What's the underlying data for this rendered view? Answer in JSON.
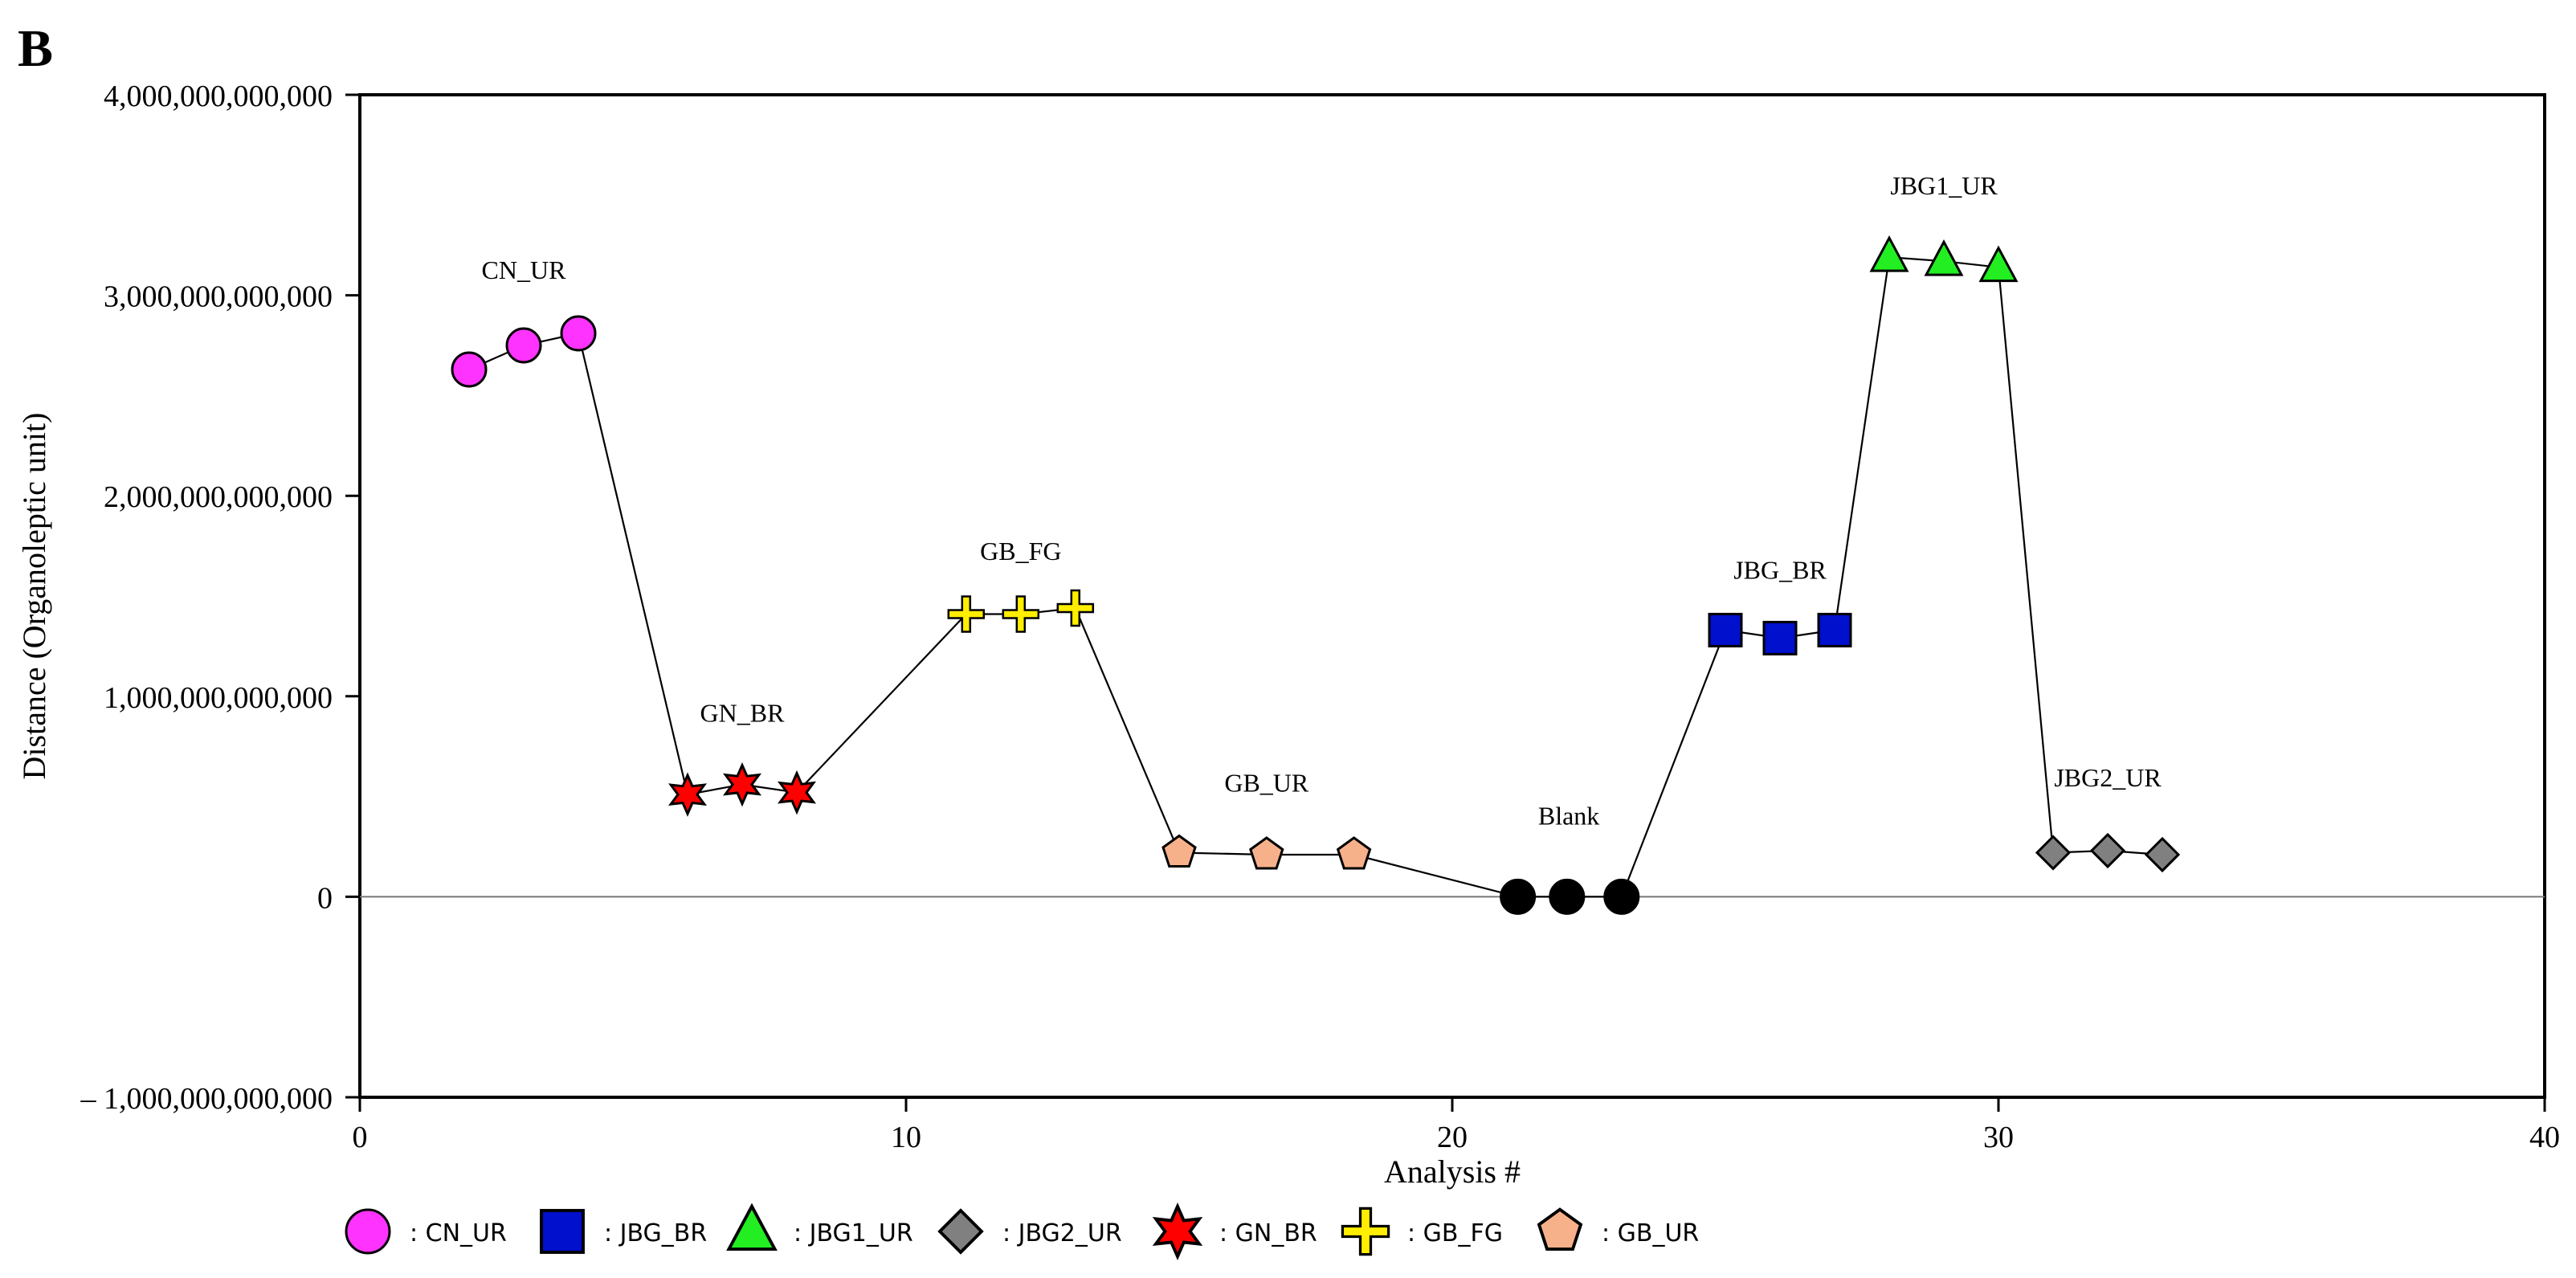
{
  "panel_label": "B",
  "chart_data": {
    "type": "scatter",
    "xlabel": "Analysis #",
    "ylabel": "Distance (Organoleptic unit)",
    "xlim": [
      0,
      40
    ],
    "ylim": [
      -1000000000000,
      4000000000000
    ],
    "x_ticks": [
      0,
      10,
      20,
      30,
      40
    ],
    "x_tick_labels": [
      "0",
      "10",
      "20",
      "30",
      "40"
    ],
    "y_ticks": [
      -1000000000000,
      0,
      1000000000000,
      2000000000000,
      3000000000000,
      4000000000000
    ],
    "y_tick_labels": [
      "– 1,000,000,000,000",
      "0",
      "1,000,000,000,000",
      "2,000,000,000,000",
      "3,000,000,000,000",
      "4,000,000,000,000"
    ],
    "zero_line": true,
    "connected": true,
    "legend_position": "bottom",
    "series": [
      {
        "name": "CN_UR",
        "legend_label": ": CN_UR",
        "marker": "circle",
        "color": "#ff33ff",
        "x": [
          2,
          3,
          4
        ],
        "y": [
          2630000000000,
          2750000000000,
          2810000000000
        ]
      },
      {
        "name": "GN_BR",
        "legend_label": ": GN_BR",
        "marker": "star6",
        "color": "#ff0000",
        "x": [
          6,
          7,
          8
        ],
        "y": [
          510000000000,
          560000000000,
          520000000000
        ]
      },
      {
        "name": "GB_FG",
        "legend_label": ": GB_FG",
        "marker": "cross",
        "color": "#ffee00",
        "x": [
          11.1,
          12.1,
          13.1
        ],
        "y": [
          1410000000000,
          1410000000000,
          1440000000000
        ]
      },
      {
        "name": "GB_UR",
        "legend_label": ": GB_UR",
        "marker": "pentagon",
        "color": "#f7b18a",
        "x": [
          15,
          16.6,
          18.2
        ],
        "y": [
          220000000000,
          210000000000,
          210000000000
        ]
      },
      {
        "name": "Blank",
        "legend_label": "",
        "marker": "circle",
        "color": "#000000",
        "x": [
          21.2,
          22.1,
          23.1
        ],
        "y": [
          0,
          0,
          0
        ]
      },
      {
        "name": "JBG_BR",
        "legend_label": ": JBG_BR",
        "marker": "square",
        "color": "#0010cc",
        "x": [
          25,
          26,
          27
        ],
        "y": [
          1330000000000,
          1290000000000,
          1330000000000
        ]
      },
      {
        "name": "JBG1_UR",
        "legend_label": ": JBG1_UR",
        "marker": "triangle",
        "color": "#22ee22",
        "x": [
          28,
          29,
          30
        ],
        "y": [
          3190000000000,
          3170000000000,
          3140000000000
        ]
      },
      {
        "name": "JBG2_UR",
        "legend_label": ": JBG2_UR",
        "marker": "diamond",
        "color": "#808080",
        "x": [
          31,
          32,
          33
        ],
        "y": [
          220000000000,
          230000000000,
          210000000000
        ]
      }
    ],
    "legend_order": [
      "CN_UR",
      "JBG_BR",
      "JBG1_UR",
      "JBG2_UR",
      "GN_BR",
      "GB_FG",
      "GB_UR"
    ]
  }
}
